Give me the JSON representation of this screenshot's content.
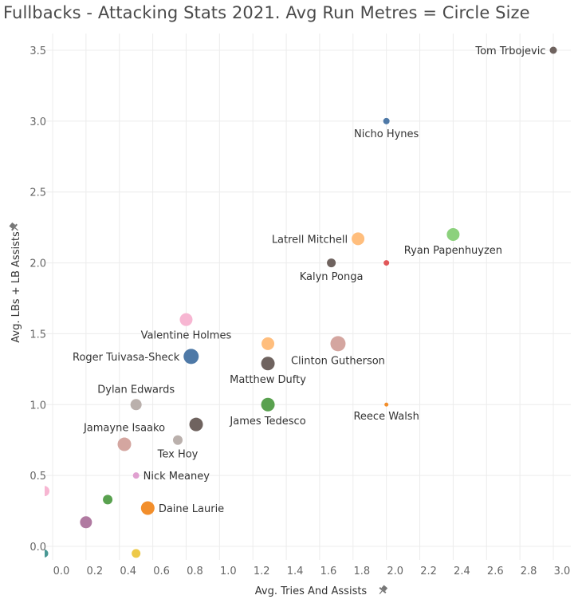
{
  "chart_data": {
    "type": "scatter",
    "title": "Fullbacks - Attacking Stats 2021. Avg Run Metres = Circle Size",
    "xlabel": "Avg. Tries And Assists",
    "ylabel": "Avg. LBs + LB Assists",
    "xlim": [
      -0.05,
      3.05
    ],
    "ylim": [
      -0.06,
      3.63
    ],
    "x_ticks": [
      "0.0",
      "0.2",
      "0.4",
      "0.6",
      "0.8",
      "1.0",
      "1.2",
      "1.4",
      "1.6",
      "1.8",
      "2.0",
      "2.2",
      "2.4",
      "2.6",
      "2.8",
      "3.0"
    ],
    "y_ticks": [
      "0.0",
      "0.5",
      "1.0",
      "1.5",
      "2.0",
      "2.5",
      "3.0",
      "3.5"
    ],
    "grid": true,
    "points": [
      {
        "label": "Tom Trbojevic",
        "x": 3.0,
        "y": 3.5,
        "color": "#6f635f",
        "size": 4.5,
        "label_pos": "left"
      },
      {
        "label": "Nicho Hynes",
        "x": 2.0,
        "y": 3.0,
        "color": "#4e79a7",
        "size": 4,
        "label_pos": "below"
      },
      {
        "label": "Ryan Papenhuyzen",
        "x": 2.4,
        "y": 2.2,
        "color": "#8cd17d",
        "size": 8,
        "label_pos": "below"
      },
      {
        "label": "Latrell Mitchell",
        "x": 1.83,
        "y": 2.17,
        "color": "#ffbe7d",
        "size": 8,
        "label_pos": "left"
      },
      {
        "label": "",
        "x": 2.0,
        "y": 2.0,
        "color": "#e15759",
        "size": 3.5,
        "label_pos": "none"
      },
      {
        "label": "Kalyn Ponga",
        "x": 1.67,
        "y": 2.0,
        "color": "#6f635f",
        "size": 5.5,
        "label_pos": "below"
      },
      {
        "label": "Valentine Holmes",
        "x": 0.8,
        "y": 1.6,
        "color": "#f7b6d2",
        "size": 8,
        "label_pos": "below"
      },
      {
        "label": "",
        "x": 1.29,
        "y": 1.43,
        "color": "#ffbe7d",
        "size": 8,
        "label_pos": "none"
      },
      {
        "label": "Clinton Gutherson",
        "x": 1.71,
        "y": 1.43,
        "color": "#d4a6a0",
        "size": 9.5,
        "label_pos": "below"
      },
      {
        "label": "Roger Tuivasa-Sheck",
        "x": 0.83,
        "y": 1.34,
        "color": "#4e79a7",
        "size": 9.5,
        "label_pos": "left"
      },
      {
        "label": "Matthew Dufty",
        "x": 1.29,
        "y": 1.29,
        "color": "#6f635f",
        "size": 8.5,
        "label_pos": "below"
      },
      {
        "label": "Dylan Edwards",
        "x": 0.5,
        "y": 1.0,
        "color": "#bab0ac",
        "size": 7,
        "label_pos": "above"
      },
      {
        "label": "James Tedesco",
        "x": 1.29,
        "y": 1.0,
        "color": "#59a14f",
        "size": 8.5,
        "label_pos": "below"
      },
      {
        "label": "Reece Walsh",
        "x": 2.0,
        "y": 1.0,
        "color": "#f28e2b",
        "size": 2.5,
        "label_pos": "below"
      },
      {
        "label": "",
        "x": 0.86,
        "y": 0.86,
        "color": "#6f635f",
        "size": 8.5,
        "label_pos": "none"
      },
      {
        "label": "Tex Hoy",
        "x": 0.75,
        "y": 0.75,
        "color": "#bab0ac",
        "size": 6,
        "label_pos": "below"
      },
      {
        "label": "Jamayne Isaako",
        "x": 0.43,
        "y": 0.72,
        "color": "#d4a6a0",
        "size": 8.5,
        "label_pos": "above"
      },
      {
        "label": "Nick Meaney",
        "x": 0.5,
        "y": 0.5,
        "color": "#e0a0d0",
        "size": 4,
        "label_pos": "right"
      },
      {
        "label": "",
        "x": -0.05,
        "y": 0.39,
        "color": "#f7b6d2",
        "size": 6.5,
        "label_pos": "none"
      },
      {
        "label": "",
        "x": 0.33,
        "y": 0.33,
        "color": "#59a14f",
        "size": 6,
        "label_pos": "none"
      },
      {
        "label": "Daine Laurie",
        "x": 0.57,
        "y": 0.27,
        "color": "#f28e2b",
        "size": 8.5,
        "label_pos": "right"
      },
      {
        "label": "",
        "x": 0.2,
        "y": 0.17,
        "color": "#b07aa1",
        "size": 7.5,
        "label_pos": "none"
      },
      {
        "label": "",
        "x": -0.05,
        "y": -0.05,
        "color": "#499894",
        "size": 5,
        "label_pos": "none"
      },
      {
        "label": "",
        "x": 0.5,
        "y": -0.05,
        "color": "#edc948",
        "size": 5.5,
        "label_pos": "none"
      }
    ]
  }
}
